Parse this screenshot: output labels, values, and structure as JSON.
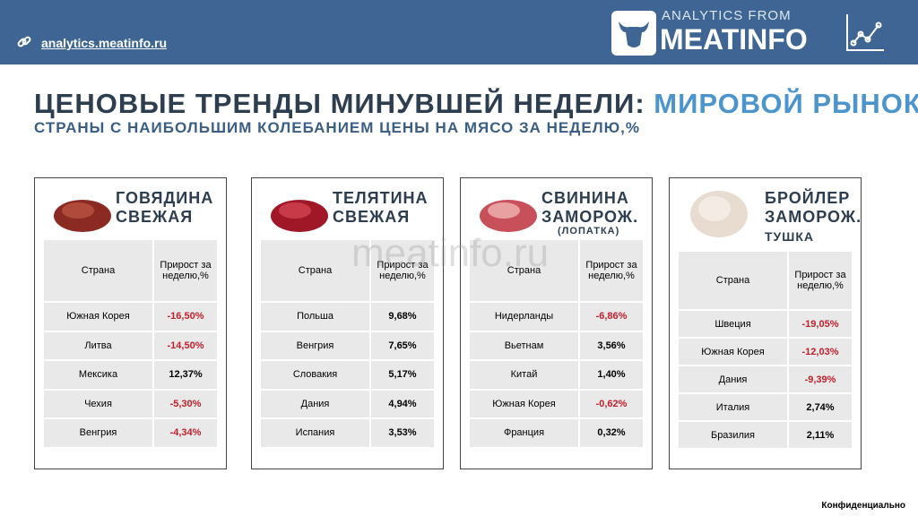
{
  "header": {
    "link": "analytics.meatinfo.ru",
    "logo_top": "ANALYTICS FROM",
    "logo_main": "MEATINFO"
  },
  "title": {
    "main": "ЦЕНОВЫЕ ТРЕНДЫ МИНУВШЕЙ НЕДЕЛИ:",
    "highlight": "МИРОВОЙ РЫНОК",
    "subtitle": "СТРАНЫ С НАИБОЛЬШИМ КОЛЕБАНИЕМ ЦЕНЫ НА МЯСО ЗА НЕДЕЛЮ,%"
  },
  "watermark": "meatinfo.ru",
  "cards": [
    {
      "title": [
        "ГОВЯДИНА",
        "СВЕЖАЯ"
      ],
      "table": {
        "columns": [
          "Страна",
          "Прирост за неделю,%"
        ],
        "rows": [
          [
            "Южная Корея",
            "-16,50%"
          ],
          [
            "Литва",
            "-14,50%"
          ],
          [
            "Мексика",
            "12,37%"
          ],
          [
            "Чехия",
            "-5,30%"
          ],
          [
            "Венгрия",
            "-4,34%"
          ]
        ]
      }
    },
    {
      "title": [
        "ТЕЛЯТИНА",
        "СВЕЖАЯ"
      ],
      "table": {
        "columns": [
          "Страна",
          "Прирост за неделю,%"
        ],
        "rows": [
          [
            "Польша",
            "9,68%"
          ],
          [
            "Венгрия",
            "7,65%"
          ],
          [
            "Словакия",
            "5,17%"
          ],
          [
            "Дания",
            "4,94%"
          ],
          [
            "Испания",
            "3,53%"
          ]
        ]
      }
    },
    {
      "title": [
        "СВИНИНА",
        "ЗАМОРОЖ."
      ],
      "note": "(ЛОПАТКА)",
      "table": {
        "columns": [
          "Страна",
          "Прирост за неделю,%"
        ],
        "rows": [
          [
            "Нидерланды",
            "-6,86%"
          ],
          [
            "Вьетнам",
            "3,56%"
          ],
          [
            "Китай",
            "1,40%"
          ],
          [
            "Южная Корея",
            "-0,62%"
          ],
          [
            "Франция",
            "0,32%"
          ]
        ]
      }
    },
    {
      "title": [
        "БРОЙЛЕР",
        "ЗАМОРОЖ."
      ],
      "note": "ТУШКА",
      "table": {
        "columns": [
          "Страна",
          "Прирост за неделю,%"
        ],
        "rows": [
          [
            "Швеция",
            "-19,05%"
          ],
          [
            "Южная Корея",
            "-12,03%"
          ],
          [
            "Дания",
            "-9,39%"
          ],
          [
            "Италия",
            "2,74%"
          ],
          [
            "Бразилия",
            "2,11%"
          ]
        ]
      }
    }
  ],
  "footer": "Конфиденциально"
}
